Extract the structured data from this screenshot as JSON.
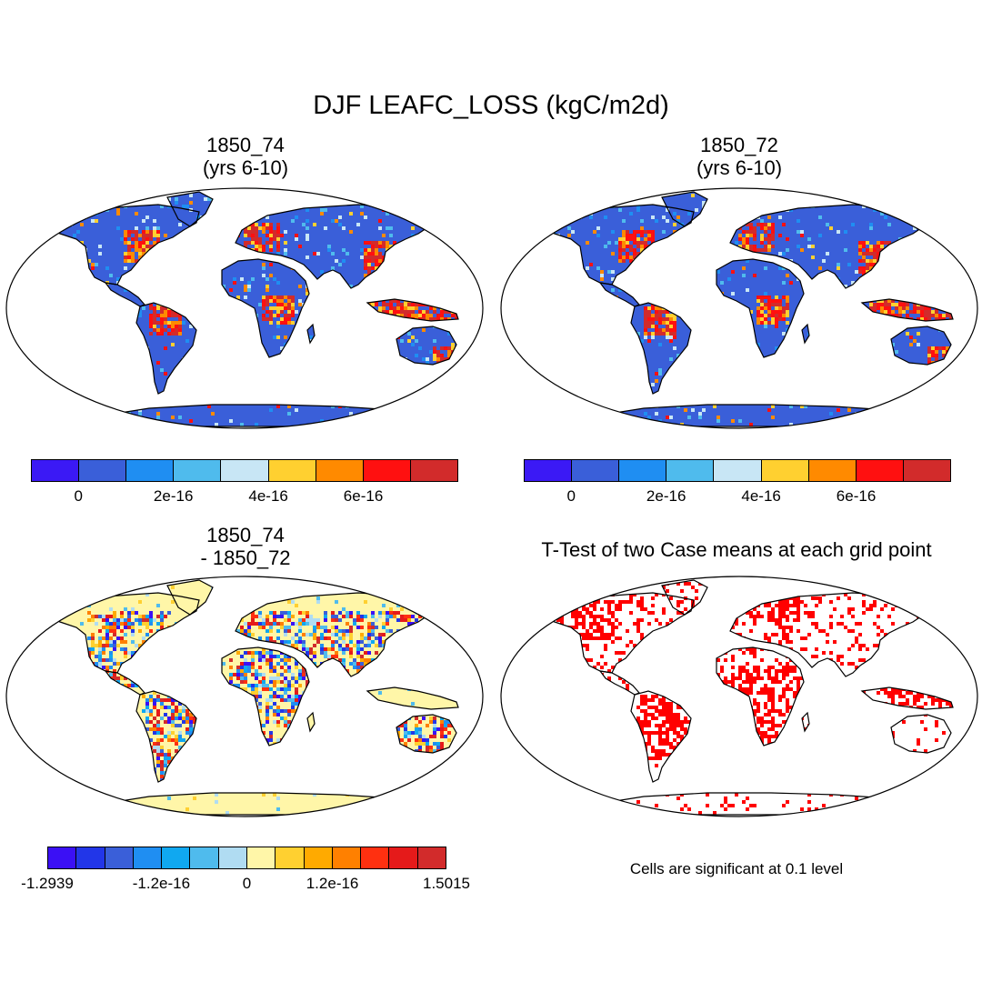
{
  "title": "DJF LEAFC_LOSS (kgC/m2d)",
  "panels": {
    "top_left": {
      "title_line1": "1850_74",
      "title_line2": "(yrs 6-10)",
      "highlight": "tropics"
    },
    "top_right": {
      "title_line1": "1850_72",
      "title_line2": "(yrs 6-10)",
      "highlight": "tropics"
    },
    "bottom_left": {
      "title_line1": "1850_74",
      "title_line2": "- 1850_72",
      "highlight": "difference"
    },
    "bottom_right": {
      "title": "T-Test of two Case means at each grid point",
      "note": "Cells are significant at 0.1 level",
      "highlight": "significance"
    }
  },
  "colorbar_levels": {
    "colors": [
      "#3b19f5",
      "#3a5fd9",
      "#1f8ef2",
      "#4fbbed",
      "#c8e6f5",
      "#ffd030",
      "#ff8a00",
      "#ff1010",
      "#d22b2b"
    ],
    "ticks": [
      "0",
      "2e-16",
      "4e-16",
      "6e-16"
    ]
  },
  "colorbar_diff": {
    "colors": [
      "#3b10f5",
      "#2236e8",
      "#3a5fd9",
      "#1f8ef2",
      "#10a8f0",
      "#4fbbed",
      "#b0dcf2",
      "#fff6a8",
      "#ffd030",
      "#ffaa00",
      "#ff8000",
      "#ff3010",
      "#e51a1a",
      "#d22b2b"
    ],
    "ticks": [
      "-1.2939",
      "-1.2e-16",
      "0",
      "1.2e-16",
      "1.5015"
    ]
  },
  "colors": {
    "land_base": "#3a5fd9",
    "diff_land_base": "#fff6a8",
    "significant": "#ff0000",
    "ocean": "#ffffff"
  }
}
